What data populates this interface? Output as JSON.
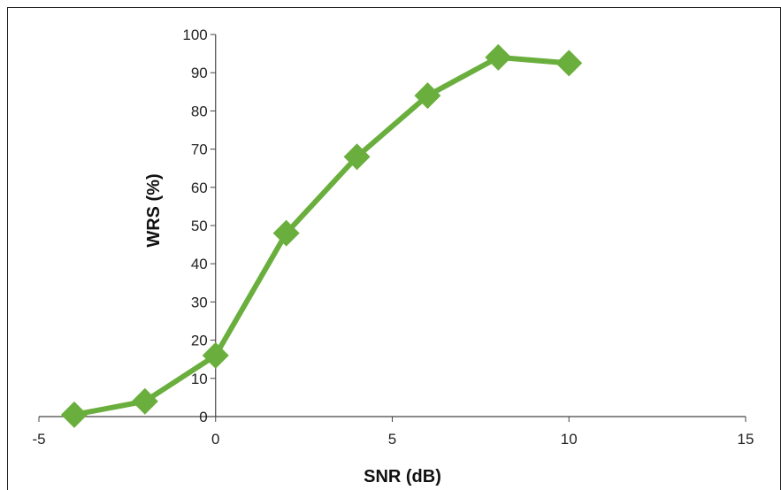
{
  "chart_data": {
    "type": "line",
    "xlabel": "SNR (dB)",
    "ylabel": "WRS (%)",
    "xlim": [
      -5,
      15
    ],
    "ylim": [
      0,
      100
    ],
    "x_ticks": [
      "-5",
      "0",
      "5",
      "10",
      "15"
    ],
    "y_ticks": [
      "0",
      "10",
      "20",
      "30",
      "40",
      "50",
      "60",
      "70",
      "80",
      "90",
      "100"
    ],
    "grid": false,
    "legend": "none",
    "series": [
      {
        "x": [
          -4,
          -2,
          0,
          2,
          4,
          6,
          8,
          10
        ],
        "y": [
          0.5,
          4,
          16,
          48,
          68,
          84,
          94,
          92.5
        ],
        "color": "#6AAF3D",
        "marker": "diamond"
      }
    ]
  }
}
